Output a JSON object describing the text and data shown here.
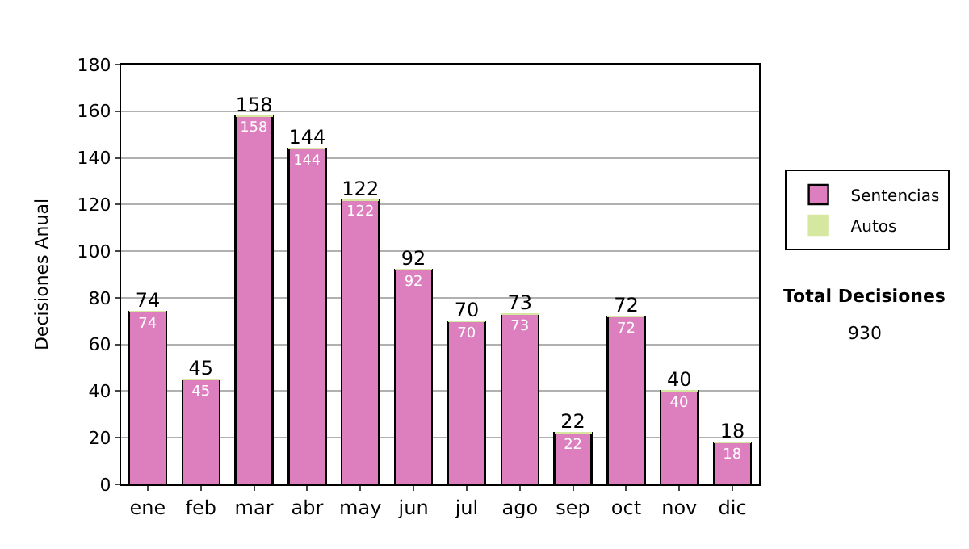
{
  "chart_data": {
    "type": "bar",
    "stacked": true,
    "ylabel": "Decisiones Anual",
    "categories": [
      "ene",
      "feb",
      "mar",
      "abr",
      "may",
      "jun",
      "jul",
      "ago",
      "sep",
      "oct",
      "nov",
      "dic"
    ],
    "series": [
      {
        "name": "Sentencias",
        "color": "#dd7fbf",
        "values": [
          74,
          45,
          158,
          144,
          122,
          92,
          70,
          73,
          22,
          72,
          40,
          18
        ],
        "value_labels": [
          "74",
          "45",
          "158",
          "144",
          "122",
          "92",
          "70",
          "73",
          "22",
          "72",
          "40",
          "18"
        ]
      },
      {
        "name": "Autos",
        "color": "#d6e8a0",
        "values": [
          0,
          0,
          0,
          0,
          0,
          0,
          0,
          0,
          0,
          0,
          0,
          0
        ]
      }
    ],
    "totals": [
      "74",
      "45",
      "158",
      "144",
      "122",
      "92",
      "70",
      "73",
      "22",
      "72",
      "40",
      "18"
    ],
    "ylim": [
      0,
      180
    ],
    "yticks": [
      0,
      20,
      40,
      60,
      80,
      100,
      120,
      140,
      160,
      180
    ],
    "grid": "y",
    "legend": "right",
    "annotations": [
      "Total Decisiones",
      "930"
    ]
  }
}
